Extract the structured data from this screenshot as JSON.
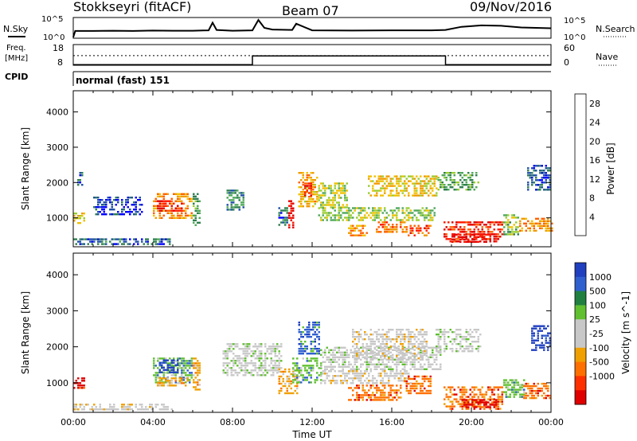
{
  "header": {
    "station": "Stokkseyri (fitACF)",
    "beam": "Beam 07",
    "date": "09/Nov/2016"
  },
  "top_panel": {
    "left_label": "N.Sky",
    "right_label": "N.Search",
    "left_ticks": [
      "10^5",
      "10^0"
    ],
    "right_ticks": [
      "10^5",
      "10^0"
    ]
  },
  "freq_panel": {
    "left_label_1": "Freq.",
    "left_label_2": "[MHz]",
    "right_label": "Nave",
    "left_ticks": [
      "18",
      "8"
    ],
    "right_ticks": [
      "60",
      "0"
    ]
  },
  "cpid": {
    "label": "CPID",
    "value": "normal (fast) 151"
  },
  "colors": {
    "power_scale": [
      "#0000ff",
      "#1f4fa8",
      "#2f7f50",
      "#4fa85a",
      "#9acd32",
      "#f0c000",
      "#f09a00",
      "#ff6000",
      "#ff1a00",
      "#e00000"
    ],
    "velocity_scale": [
      "#2040c0",
      "#3060d0",
      "#208040",
      "#60c030",
      "#c8c8c8",
      "#c8c8c8",
      "#f0a000",
      "#ff7000",
      "#ff3000",
      "#e00000"
    ]
  },
  "chart_data": [
    {
      "type": "line",
      "panel": "noise",
      "series": [
        {
          "name": "N.Sky",
          "x_hours": [
            0,
            0.1,
            1,
            2,
            3,
            4,
            5,
            6,
            6.8,
            7.0,
            7.2,
            8,
            9,
            9.3,
            9.6,
            10,
            11,
            11.2,
            12,
            14,
            16,
            18,
            18.7,
            19.5,
            20.5,
            21.5,
            22.5,
            24
          ],
          "values": [
            0.05,
            0.35,
            0.35,
            0.36,
            0.35,
            0.37,
            0.36,
            0.36,
            0.38,
            0.75,
            0.4,
            0.36,
            0.38,
            0.88,
            0.5,
            0.42,
            0.4,
            0.7,
            0.38,
            0.37,
            0.38,
            0.38,
            0.4,
            0.55,
            0.62,
            0.6,
            0.52,
            0.48
          ]
        }
      ]
    },
    {
      "type": "line",
      "panel": "freq-nave",
      "series": [
        {
          "name": "Freq",
          "x_hours": [
            0,
            9.0,
            9.0,
            18.7,
            18.7,
            24
          ],
          "values": [
            8.3,
            8.3,
            12.5,
            12.5,
            8.3,
            8.3
          ]
        },
        {
          "name": "Nave",
          "x_hours": [
            0,
            24
          ],
          "values": [
            28,
            28
          ]
        }
      ]
    },
    {
      "type": "heatmap",
      "panel": "power",
      "title": "",
      "xlabel": "Time UT",
      "ylabel": "Slant Range [km]",
      "xlim": [
        0,
        24
      ],
      "ylim": [
        180,
        4600
      ],
      "x_ticks": [
        "00:00",
        "04:00",
        "08:00",
        "12:00",
        "16:00",
        "20:00",
        "00:00"
      ],
      "y_ticks": [
        1000,
        2000,
        3000,
        4000
      ],
      "colorbar_label": "Power [dB]",
      "colorbar_ticks": [
        4,
        8,
        12,
        16,
        20,
        24,
        28
      ],
      "colorbar_range": [
        0,
        30
      ],
      "patches": [
        {
          "t0": 0.0,
          "t1": 0.6,
          "r0": 850,
          "r1": 1150,
          "v": 16
        },
        {
          "t0": 0.0,
          "t1": 5.0,
          "r0": 250,
          "r1": 420,
          "v": 6
        },
        {
          "t0": 0.2,
          "t1": 0.5,
          "r0": 1900,
          "r1": 2300,
          "v": 4
        },
        {
          "t0": 1.0,
          "t1": 3.5,
          "r0": 1100,
          "r1": 1600,
          "v": 3
        },
        {
          "t0": 4.0,
          "t1": 6.0,
          "r0": 1000,
          "r1": 1700,
          "v": 20
        },
        {
          "t0": 4.2,
          "t1": 5.5,
          "r0": 1200,
          "r1": 1500,
          "v": 26
        },
        {
          "t0": 6.0,
          "t1": 6.4,
          "r0": 800,
          "r1": 1700,
          "v": 10
        },
        {
          "t0": 7.7,
          "t1": 8.6,
          "r0": 1200,
          "r1": 1800,
          "v": 8
        },
        {
          "t0": 10.3,
          "t1": 10.8,
          "r0": 800,
          "r1": 1300,
          "v": 6
        },
        {
          "t0": 10.8,
          "t1": 11.1,
          "r0": 700,
          "r1": 1500,
          "v": 28
        },
        {
          "t0": 11.3,
          "t1": 12.3,
          "r0": 1300,
          "r1": 2300,
          "v": 18
        },
        {
          "t0": 11.6,
          "t1": 12.0,
          "r0": 1600,
          "r1": 2000,
          "v": 26
        },
        {
          "t0": 12.3,
          "t1": 13.8,
          "r0": 1300,
          "r1": 2000,
          "v": 14
        },
        {
          "t0": 12.3,
          "t1": 18.2,
          "r0": 950,
          "r1": 1300,
          "v": 13
        },
        {
          "t0": 13.8,
          "t1": 14.8,
          "r0": 500,
          "r1": 800,
          "v": 20
        },
        {
          "t0": 14.8,
          "t1": 18.3,
          "r0": 1600,
          "r1": 2200,
          "v": 17
        },
        {
          "t0": 15.2,
          "t1": 16.8,
          "r0": 600,
          "r1": 900,
          "v": 22
        },
        {
          "t0": 16.8,
          "t1": 18.0,
          "r0": 500,
          "r1": 800,
          "v": 24
        },
        {
          "t0": 18.3,
          "t1": 20.4,
          "r0": 1800,
          "r1": 2300,
          "v": 10
        },
        {
          "t0": 18.6,
          "t1": 21.6,
          "r0": 300,
          "r1": 900,
          "v": 26
        },
        {
          "t0": 19.0,
          "t1": 21.0,
          "r0": 300,
          "r1": 550,
          "v": 28
        },
        {
          "t0": 21.6,
          "t1": 22.4,
          "r0": 500,
          "r1": 1100,
          "v": 12
        },
        {
          "t0": 22.4,
          "t1": 24.0,
          "r0": 600,
          "r1": 1000,
          "v": 20
        },
        {
          "t0": 22.8,
          "t1": 24.0,
          "r0": 1800,
          "r1": 2500,
          "v": 5
        }
      ]
    },
    {
      "type": "heatmap",
      "panel": "velocity",
      "title": "",
      "xlabel": "Time UT",
      "ylabel": "Slant Range [km]",
      "xlim": [
        0,
        24
      ],
      "ylim": [
        180,
        4600
      ],
      "x_ticks": [
        "00:00",
        "04:00",
        "08:00",
        "12:00",
        "16:00",
        "20:00",
        "00:00"
      ],
      "y_ticks": [
        1000,
        2000,
        3000,
        4000
      ],
      "colorbar_label": "Velocity [m s^-1]",
      "colorbar_ticks": [
        "1000",
        "500",
        "100",
        "25",
        "-25",
        "-100",
        "-500",
        "-1000"
      ],
      "patches": [
        {
          "t0": 0.0,
          "t1": 0.6,
          "r0": 850,
          "r1": 1150,
          "v": "-1000"
        },
        {
          "t0": 0.0,
          "t1": 5.0,
          "r0": 250,
          "r1": 420,
          "v": "-25"
        },
        {
          "t0": 4.0,
          "t1": 6.0,
          "r0": 1000,
          "r1": 1700,
          "v": "100"
        },
        {
          "t0": 4.3,
          "t1": 5.3,
          "r0": 1300,
          "r1": 1650,
          "v": "1000"
        },
        {
          "t0": 4.2,
          "t1": 5.8,
          "r0": 950,
          "r1": 1150,
          "v": "-100"
        },
        {
          "t0": 6.0,
          "t1": 6.4,
          "r0": 800,
          "r1": 1700,
          "v": "-100"
        },
        {
          "t0": 7.5,
          "t1": 10.5,
          "r0": 1200,
          "r1": 2100,
          "v": "25"
        },
        {
          "t0": 10.3,
          "t1": 11.3,
          "r0": 700,
          "r1": 1400,
          "v": "-100"
        },
        {
          "t0": 11.3,
          "t1": 12.4,
          "r0": 1800,
          "r1": 2700,
          "v": "500"
        },
        {
          "t0": 11.0,
          "t1": 12.4,
          "r0": 1000,
          "r1": 1700,
          "v": "100"
        },
        {
          "t0": 12.4,
          "t1": 18.5,
          "r0": 1400,
          "r1": 2000,
          "v": "25"
        },
        {
          "t0": 14.0,
          "t1": 17.8,
          "r0": 1700,
          "r1": 2500,
          "v": "-25"
        },
        {
          "t0": 12.4,
          "t1": 17.0,
          "r0": 1000,
          "r1": 1350,
          "v": "-25"
        },
        {
          "t0": 13.8,
          "t1": 16.5,
          "r0": 500,
          "r1": 950,
          "v": "-500"
        },
        {
          "t0": 16.6,
          "t1": 18.0,
          "r0": 700,
          "r1": 1200,
          "v": "-500"
        },
        {
          "t0": 18.2,
          "t1": 20.5,
          "r0": 1900,
          "r1": 2500,
          "v": "25"
        },
        {
          "t0": 18.6,
          "t1": 21.6,
          "r0": 300,
          "r1": 900,
          "v": "-500"
        },
        {
          "t0": 19.5,
          "t1": 21.3,
          "r0": 300,
          "r1": 550,
          "v": "-1000"
        },
        {
          "t0": 21.6,
          "t1": 22.6,
          "r0": 600,
          "r1": 1100,
          "v": "100"
        },
        {
          "t0": 22.6,
          "t1": 24.0,
          "r0": 550,
          "r1": 1000,
          "v": "-500"
        },
        {
          "t0": 23.0,
          "t1": 24.0,
          "r0": 1900,
          "r1": 2600,
          "v": "1000"
        }
      ]
    }
  ]
}
